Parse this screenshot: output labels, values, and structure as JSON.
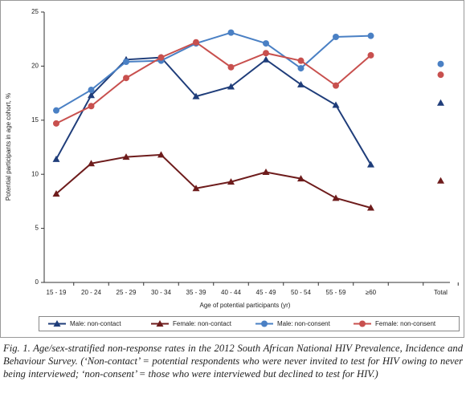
{
  "chart_data": {
    "type": "line",
    "y_label": "Potential participants in age cohort, %",
    "x_label": "Age of potential participants (yr)",
    "categories": [
      "15 - 19",
      "20 - 24",
      "25 - 29",
      "30 - 34",
      "35 - 39",
      "40 - 44",
      "45 - 49",
      "50 - 54",
      "55 - 59",
      "≥60",
      null,
      "Total"
    ],
    "series": [
      {
        "name": "Male: non-contact",
        "color": "#1f3d7a",
        "marker": "triangle",
        "values": [
          11.4,
          17.3,
          20.6,
          20.8,
          17.2,
          18.1,
          20.6,
          18.3,
          16.4,
          10.9,
          null,
          16.6
        ]
      },
      {
        "name": "Female: non-contact",
        "color": "#6e1c1c",
        "marker": "triangle",
        "values": [
          8.2,
          11.0,
          11.6,
          11.8,
          8.7,
          9.3,
          10.2,
          9.6,
          7.8,
          6.9,
          null,
          9.4
        ]
      },
      {
        "name": "Male: non-consent",
        "color": "#4a80c4",
        "marker": "circle",
        "values": [
          15.9,
          17.8,
          20.4,
          20.5,
          22.1,
          23.1,
          22.1,
          19.8,
          22.7,
          22.8,
          null,
          20.2
        ]
      },
      {
        "name": "Female: non-consent",
        "color": "#c8504e",
        "marker": "circle",
        "values": [
          14.7,
          16.3,
          18.9,
          20.8,
          22.2,
          19.9,
          21.2,
          20.5,
          18.2,
          21.0,
          null,
          19.2
        ]
      }
    ],
    "ylim": [
      0,
      25
    ],
    "yticks": [
      0,
      5,
      10,
      15,
      20,
      25
    ],
    "caption": "Fig. 1. Age/sex-stratified non-response rates in the 2012 South African National HIV Prevalence, Incidence and Behaviour Survey. (‘Non-contact’ = potential respondents who were never invited to test for HIV owing to never being interviewed; ‘non-consent’ = those who were interviewed but declined to test for HIV.)"
  }
}
